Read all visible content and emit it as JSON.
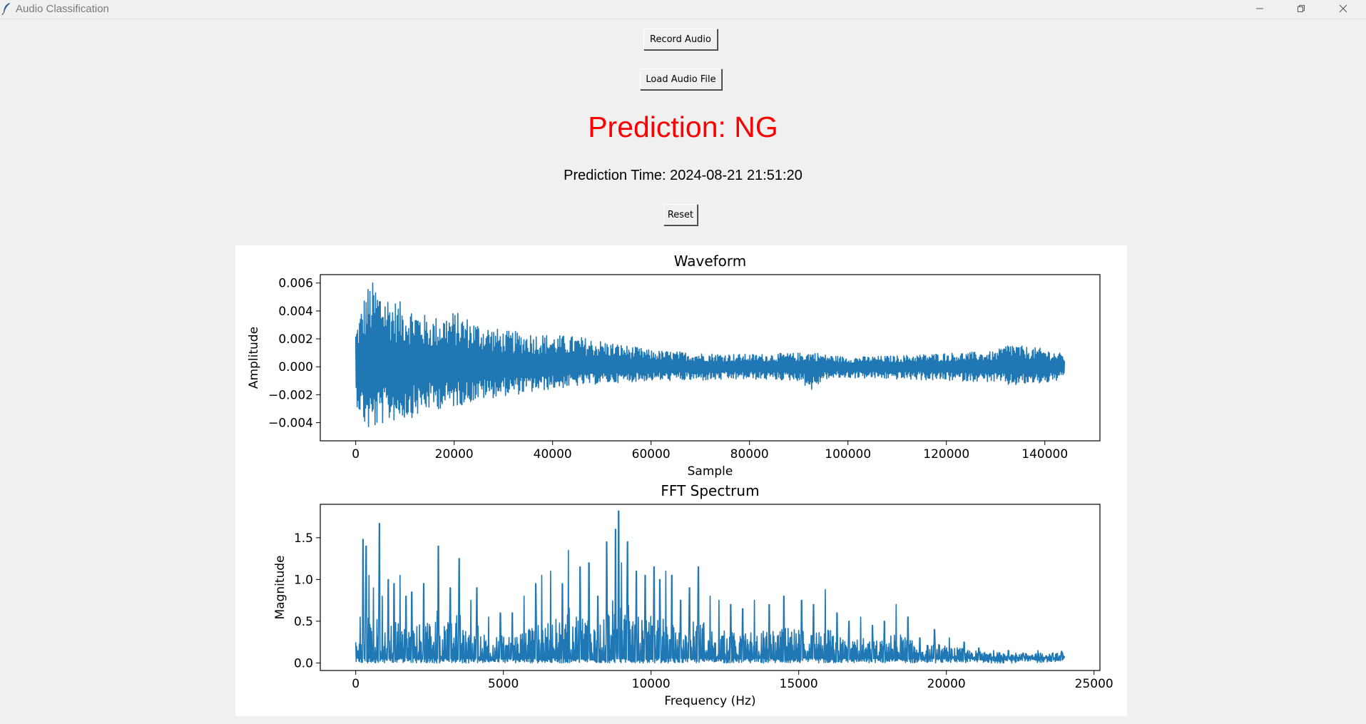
{
  "window": {
    "title": "Audio Classification",
    "controls": [
      "minimize-icon",
      "restore-icon",
      "close-icon"
    ]
  },
  "buttons": {
    "record": "Record Audio",
    "load": "Load Audio File",
    "reset": "Reset"
  },
  "prediction": {
    "text": "Prediction: NG",
    "color": "#ff0000",
    "time_text": "Prediction Time: 2024-08-21 21:51:20"
  },
  "chart_data": [
    {
      "type": "line",
      "title": "Waveform",
      "xlabel": "Sample",
      "ylabel": "Amplitude",
      "xlim": [
        -7200,
        151200
      ],
      "ylim": [
        -0.0053,
        0.0066
      ],
      "xticks": [
        0,
        20000,
        40000,
        60000,
        80000,
        100000,
        120000,
        140000
      ],
      "xticklabels": [
        "0",
        "20000",
        "40000",
        "60000",
        "80000",
        "100000",
        "120000",
        "140000"
      ],
      "yticks": [
        -0.004,
        -0.002,
        0.0,
        0.002,
        0.004,
        0.006
      ],
      "yticklabels": [
        "−0.004",
        "−0.002",
        "0.000",
        "0.002",
        "0.004",
        "0.006"
      ],
      "series": [
        {
          "color": "#1f77b4",
          "x_range": [
            0,
            144000
          ],
          "envelope": {
            "x": [
              0,
              2000,
              3000,
              5000,
              8000,
              12000,
              15000,
              20000,
              25000,
              30000,
              35000,
              40000,
              45000,
              50000,
              60000,
              70000,
              80000,
              90000,
              93000,
              95000,
              100000,
              110000,
              120000,
              130000,
              133000,
              135000,
              140000,
              144000
            ],
            "max": [
              0.0028,
              0.0055,
              0.0062,
              0.0058,
              0.0048,
              0.0043,
              0.0035,
              0.004,
              0.0032,
              0.0026,
              0.0025,
              0.0023,
              0.0022,
              0.0019,
              0.0012,
              0.001,
              0.0009,
              0.001,
              0.0011,
              0.0009,
              0.0007,
              0.0008,
              0.001,
              0.0011,
              0.0018,
              0.0015,
              0.0013,
              0.0009
            ],
            "min": [
              -0.0026,
              -0.0045,
              -0.0048,
              -0.0042,
              -0.0039,
              -0.0036,
              -0.0031,
              -0.0029,
              -0.0024,
              -0.0021,
              -0.0019,
              -0.0016,
              -0.0014,
              -0.0012,
              -0.001,
              -0.001,
              -0.0009,
              -0.001,
              -0.0018,
              -0.0009,
              -0.0008,
              -0.0009,
              -0.001,
              -0.0011,
              -0.0014,
              -0.0013,
              -0.0012,
              -0.0009
            ]
          }
        }
      ]
    },
    {
      "type": "line",
      "title": "FFT Spectrum",
      "xlabel": "Frequency (Hz)",
      "ylabel": "Magnitude",
      "xlim": [
        -1200,
        25200
      ],
      "ylim": [
        -0.09,
        1.9
      ],
      "xticks": [
        0,
        5000,
        10000,
        15000,
        20000,
        25000
      ],
      "xticklabels": [
        "0",
        "5000",
        "10000",
        "15000",
        "20000",
        "25000"
      ],
      "yticks": [
        0.0,
        0.5,
        1.0,
        1.5
      ],
      "yticklabels": [
        "0.0",
        "0.5",
        "1.0",
        "1.5"
      ],
      "series": [
        {
          "color": "#1f77b4",
          "x_range": [
            0,
            24000
          ],
          "peaks": {
            "x": [
              150,
              250,
              350,
              450,
              600,
              800,
              900,
              1100,
              1300,
              1500,
              1700,
              1900,
              2300,
              2800,
              3200,
              3500,
              3900,
              4100,
              4500,
              4900,
              5300,
              5700,
              6100,
              6300,
              6600,
              7000,
              7200,
              7600,
              7900,
              8200,
              8500,
              8800,
              8900,
              9000,
              9200,
              9500,
              9800,
              10100,
              10300,
              10500,
              10700,
              11000,
              11300,
              11600,
              12000,
              12300,
              12700,
              13100,
              13500,
              14000,
              14500,
              15100,
              15500,
              15900,
              16300,
              16700,
              17100,
              17500,
              17900,
              18300,
              18700,
              19100,
              19600,
              20100,
              20600,
              21100,
              21600,
              22100,
              22600,
              23100,
              23600,
              23900
            ],
            "y": [
              0.55,
              1.48,
              1.4,
              1.05,
              0.9,
              1.67,
              0.8,
              1.0,
              0.95,
              1.05,
              0.8,
              0.85,
              0.95,
              1.4,
              0.9,
              1.25,
              0.75,
              0.9,
              0.55,
              0.6,
              0.6,
              0.8,
              0.95,
              1.05,
              1.1,
              0.95,
              1.35,
              1.15,
              1.2,
              0.8,
              1.45,
              1.6,
              1.82,
              1.2,
              1.45,
              1.1,
              1.05,
              1.15,
              1.0,
              1.1,
              1.05,
              0.75,
              0.9,
              1.15,
              0.8,
              0.75,
              0.7,
              0.65,
              0.75,
              0.7,
              0.8,
              0.75,
              0.7,
              0.88,
              0.6,
              0.5,
              0.55,
              0.45,
              0.5,
              0.7,
              0.55,
              0.3,
              0.4,
              0.3,
              0.25,
              0.18,
              0.15,
              0.15,
              0.12,
              0.15,
              0.12,
              0.14
            ],
            "floor": 0.06
          }
        }
      ]
    }
  ]
}
